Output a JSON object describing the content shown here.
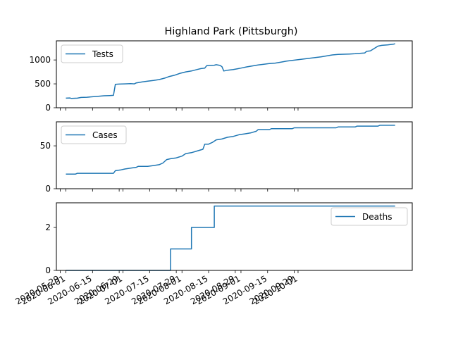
{
  "figure": {
    "title": "Highland Park (Pittsburgh)"
  },
  "chart_data": [
    {
      "type": "line",
      "series": [
        {
          "name": "Tests",
          "color": "#1f77b4"
        }
      ],
      "ylim": [
        0,
        1400
      ],
      "yticks": [
        0,
        500,
        1000
      ],
      "yticklabels": [
        "0",
        "500",
        "1000"
      ],
      "legend": "upper-left",
      "points": [
        [
          "2020-06-01",
          200
        ],
        [
          "2020-06-03",
          205
        ],
        [
          "2020-06-04",
          195
        ],
        [
          "2020-06-07",
          200
        ],
        [
          "2020-06-09",
          215
        ],
        [
          "2020-06-12",
          220
        ],
        [
          "2020-06-15",
          230
        ],
        [
          "2020-06-18",
          240
        ],
        [
          "2020-06-21",
          250
        ],
        [
          "2020-06-24",
          255
        ],
        [
          "2020-06-26",
          260
        ],
        [
          "2020-06-27",
          490
        ],
        [
          "2020-06-29",
          495
        ],
        [
          "2020-07-02",
          500
        ],
        [
          "2020-07-05",
          505
        ],
        [
          "2020-07-07",
          500
        ],
        [
          "2020-07-08",
          520
        ],
        [
          "2020-07-11",
          540
        ],
        [
          "2020-07-14",
          555
        ],
        [
          "2020-07-17",
          570
        ],
        [
          "2020-07-20",
          590
        ],
        [
          "2020-07-23",
          620
        ],
        [
          "2020-07-25",
          650
        ],
        [
          "2020-07-28",
          680
        ],
        [
          "2020-07-31",
          720
        ],
        [
          "2020-08-03",
          750
        ],
        [
          "2020-08-06",
          770
        ],
        [
          "2020-08-09",
          800
        ],
        [
          "2020-08-11",
          820
        ],
        [
          "2020-08-13",
          830
        ],
        [
          "2020-08-14",
          880
        ],
        [
          "2020-08-16",
          885
        ],
        [
          "2020-08-18",
          890
        ],
        [
          "2020-08-19",
          900
        ],
        [
          "2020-08-21",
          885
        ],
        [
          "2020-08-22",
          860
        ],
        [
          "2020-08-23",
          770
        ],
        [
          "2020-08-25",
          785
        ],
        [
          "2020-08-28",
          800
        ],
        [
          "2020-08-30",
          815
        ],
        [
          "2020-09-01",
          830
        ],
        [
          "2020-09-04",
          855
        ],
        [
          "2020-09-07",
          875
        ],
        [
          "2020-09-10",
          895
        ],
        [
          "2020-09-13",
          910
        ],
        [
          "2020-09-16",
          925
        ],
        [
          "2020-09-19",
          935
        ],
        [
          "2020-09-22",
          955
        ],
        [
          "2020-09-25",
          975
        ],
        [
          "2020-09-28",
          990
        ],
        [
          "2020-10-01",
          1005
        ],
        [
          "2020-10-04",
          1020
        ],
        [
          "2020-10-07",
          1035
        ],
        [
          "2020-10-10",
          1050
        ],
        [
          "2020-10-13",
          1065
        ],
        [
          "2020-10-16",
          1085
        ],
        [
          "2020-10-19",
          1105
        ],
        [
          "2020-10-22",
          1115
        ],
        [
          "2020-10-25",
          1120
        ],
        [
          "2020-10-28",
          1125
        ],
        [
          "2020-10-31",
          1130
        ],
        [
          "2020-11-03",
          1140
        ],
        [
          "2020-11-05",
          1145
        ],
        [
          "2020-11-06",
          1180
        ],
        [
          "2020-11-08",
          1190
        ],
        [
          "2020-11-10",
          1240
        ],
        [
          "2020-11-12",
          1290
        ],
        [
          "2020-11-14",
          1305
        ],
        [
          "2020-11-17",
          1315
        ],
        [
          "2020-11-20",
          1330
        ],
        [
          "2020-11-21",
          1340
        ]
      ]
    },
    {
      "type": "line",
      "series": [
        {
          "name": "Cases",
          "color": "#1f77b4"
        }
      ],
      "ylim": [
        0,
        78
      ],
      "yticks": [
        0,
        50
      ],
      "yticklabels": [
        "0",
        "50"
      ],
      "legend": "upper-left",
      "points": [
        [
          "2020-06-01",
          17
        ],
        [
          "2020-06-06",
          17
        ],
        [
          "2020-06-07",
          18
        ],
        [
          "2020-06-26",
          18
        ],
        [
          "2020-06-27",
          21
        ],
        [
          "2020-06-30",
          22
        ],
        [
          "2020-07-02",
          23
        ],
        [
          "2020-07-05",
          24
        ],
        [
          "2020-07-08",
          25
        ],
        [
          "2020-07-09",
          26
        ],
        [
          "2020-07-14",
          26
        ],
        [
          "2020-07-17",
          27
        ],
        [
          "2020-07-20",
          28
        ],
        [
          "2020-07-22",
          30
        ],
        [
          "2020-07-24",
          34
        ],
        [
          "2020-07-26",
          35
        ],
        [
          "2020-07-29",
          36
        ],
        [
          "2020-08-01",
          38
        ],
        [
          "2020-08-03",
          41
        ],
        [
          "2020-08-06",
          42
        ],
        [
          "2020-08-09",
          44
        ],
        [
          "2020-08-12",
          46
        ],
        [
          "2020-08-13",
          52
        ],
        [
          "2020-08-15",
          52
        ],
        [
          "2020-08-17",
          54
        ],
        [
          "2020-08-19",
          57
        ],
        [
          "2020-08-22",
          58
        ],
        [
          "2020-08-25",
          60
        ],
        [
          "2020-08-28",
          61
        ],
        [
          "2020-08-31",
          63
        ],
        [
          "2020-09-03",
          64
        ],
        [
          "2020-09-06",
          65
        ],
        [
          "2020-09-09",
          67
        ],
        [
          "2020-09-10",
          69
        ],
        [
          "2020-09-16",
          69
        ],
        [
          "2020-09-17",
          70
        ],
        [
          "2020-09-28",
          70
        ],
        [
          "2020-09-29",
          71
        ],
        [
          "2020-10-21",
          71
        ],
        [
          "2020-10-22",
          72
        ],
        [
          "2020-10-31",
          72
        ],
        [
          "2020-11-01",
          73
        ],
        [
          "2020-11-12",
          73
        ],
        [
          "2020-11-13",
          74
        ],
        [
          "2020-11-21",
          74
        ]
      ]
    },
    {
      "type": "line",
      "series": [
        {
          "name": "Deaths",
          "color": "#1f77b4"
        }
      ],
      "ylim": [
        0,
        3.15
      ],
      "yticks": [
        0,
        2
      ],
      "yticklabels": [
        "0",
        "2"
      ],
      "legend": "upper-right",
      "points": [
        [
          "2020-06-01",
          0
        ],
        [
          "2020-07-26",
          0
        ],
        [
          "2020-07-26",
          1
        ],
        [
          "2020-08-06",
          1
        ],
        [
          "2020-08-06",
          2
        ],
        [
          "2020-08-18",
          2
        ],
        [
          "2020-08-18",
          3
        ],
        [
          "2020-11-21",
          3
        ]
      ]
    }
  ],
  "x_axis": {
    "xlim": [
      "2020-05-27",
      "2020-11-30"
    ],
    "ticks": [
      {
        "date": "2020-05-29",
        "label": "2020-05-29"
      },
      {
        "date": "2020-06-01",
        "label": "2020-06-01"
      },
      {
        "date": "2020-06-15",
        "label": "2020-06-15"
      },
      {
        "date": "2020-06-29",
        "label": "2020-06-29"
      },
      {
        "date": "2020-07-01",
        "label": "2020-07-01"
      },
      {
        "date": "2020-07-15",
        "label": "2020-07-15"
      },
      {
        "date": "2020-07-29",
        "label": "2020-07-29"
      },
      {
        "date": "2020-08-01",
        "label": "2020-08-01"
      },
      {
        "date": "2020-08-15",
        "label": "2020-08-15"
      },
      {
        "date": "2020-08-29",
        "label": "2020-08-29"
      },
      {
        "date": "2020-09-01",
        "label": "2020-09-01"
      },
      {
        "date": "2020-09-15",
        "label": "2020-09-15"
      },
      {
        "date": "2020-09-29",
        "label": "2020-09-29"
      },
      {
        "date": "2020-10-01",
        "label": "2020-10-01"
      }
    ]
  }
}
